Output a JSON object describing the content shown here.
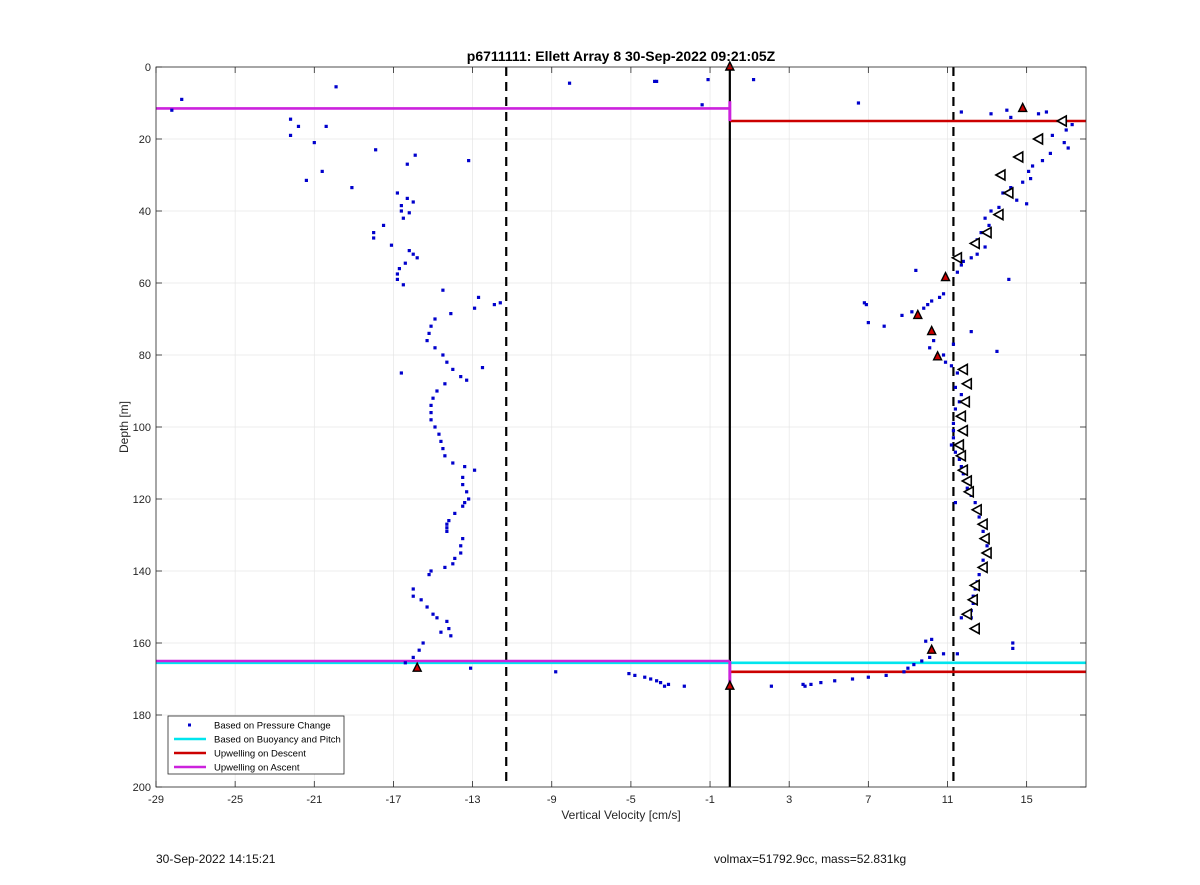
{
  "footer": {
    "timestamp": "30-Sep-2022 14:15:21",
    "volmax_mass": "volmax=51792.9cc, mass=52.831kg"
  },
  "chart_data": {
    "type": "scatter",
    "title": "p6711111: Ellett Array 8 30-Sep-2022 09:21:05Z",
    "xlabel": "Vertical Velocity [cm/s]",
    "ylabel": "Depth [m]",
    "xlim": [
      -29,
      18
    ],
    "ylim": [
      0,
      200
    ],
    "y_reversed": true,
    "grid": true,
    "xticks": [
      -29,
      -25,
      -21,
      -17,
      -13,
      -9,
      -5,
      -1,
      3,
      7,
      11,
      15
    ],
    "yticks": [
      0,
      20,
      40,
      60,
      80,
      100,
      120,
      140,
      160,
      180,
      200
    ],
    "legend_placement": "bottom-left",
    "colors": {
      "pressure": "#0000cc",
      "buoyancy": "#00e5ee",
      "descent": "#cc0000",
      "ascent": "#cc22dd",
      "triangle_edge": "#000000",
      "triangle_fill": "#ffffff",
      "marker_red": "#cc0000"
    },
    "series": [
      {
        "name": "Based on Pressure Change",
        "kind": "points",
        "points": [
          [
            -28.2,
            12
          ],
          [
            -27.7,
            9
          ],
          [
            -19.9,
            5.5
          ],
          [
            -8.1,
            4.5
          ],
          [
            -3.8,
            4
          ],
          [
            -3.7,
            4
          ],
          [
            -1.1,
            3.5
          ],
          [
            1.2,
            3.5
          ],
          [
            -1.4,
            10.5
          ],
          [
            6.5,
            10
          ],
          [
            -21.8,
            16.5
          ],
          [
            -22.2,
            14.5
          ],
          [
            -22.2,
            19
          ],
          [
            -20.4,
            16.5
          ],
          [
            -21,
            21
          ],
          [
            -21.4,
            31.5
          ],
          [
            -20.6,
            29
          ],
          [
            -19.1,
            33.5
          ],
          [
            -17.9,
            23
          ],
          [
            -15.9,
            24.5
          ],
          [
            -16.3,
            27
          ],
          [
            -13.2,
            26
          ],
          [
            -16.8,
            35
          ],
          [
            -16.3,
            36.5
          ],
          [
            -16,
            37.5
          ],
          [
            -16.6,
            40
          ],
          [
            -16.2,
            40.5
          ],
          [
            -16.5,
            42
          ],
          [
            -16.6,
            38.5
          ],
          [
            -17.5,
            44
          ],
          [
            -18,
            46
          ],
          [
            -18,
            47.5
          ],
          [
            -17.1,
            49.5
          ],
          [
            -16.2,
            51
          ],
          [
            -16,
            52
          ],
          [
            -15.8,
            53
          ],
          [
            -16.4,
            54.5
          ],
          [
            -16.7,
            56
          ],
          [
            -16.8,
            57.5
          ],
          [
            -16.8,
            59
          ],
          [
            -16.5,
            60.5
          ],
          [
            -14.5,
            62
          ],
          [
            -12.7,
            64
          ],
          [
            -12.9,
            67
          ],
          [
            -11.9,
            66
          ],
          [
            -11.6,
            65.5
          ],
          [
            -14.1,
            68.5
          ],
          [
            -14.9,
            70
          ],
          [
            -15.1,
            72
          ],
          [
            -15.2,
            74
          ],
          [
            -15.3,
            76
          ],
          [
            -14.9,
            78
          ],
          [
            -14.5,
            80
          ],
          [
            -14.3,
            82
          ],
          [
            -14,
            84
          ],
          [
            -12.5,
            83.5
          ],
          [
            -16.6,
            85
          ],
          [
            -13.6,
            86
          ],
          [
            -13.3,
            87
          ],
          [
            -14.4,
            88
          ],
          [
            -14.8,
            90
          ],
          [
            -15,
            92
          ],
          [
            -15.1,
            94
          ],
          [
            -15.1,
            96
          ],
          [
            -15.1,
            98
          ],
          [
            -14.9,
            100
          ],
          [
            -14.7,
            102
          ],
          [
            -14.6,
            104
          ],
          [
            -14.5,
            106
          ],
          [
            -14.4,
            108
          ],
          [
            -14,
            110
          ],
          [
            -13.4,
            111
          ],
          [
            -12.9,
            112
          ],
          [
            -13.5,
            114
          ],
          [
            -13.5,
            116
          ],
          [
            -13.3,
            118
          ],
          [
            -13.2,
            120
          ],
          [
            -13.4,
            121
          ],
          [
            -13.5,
            122
          ],
          [
            -13.9,
            124
          ],
          [
            -14.2,
            126
          ],
          [
            -14.3,
            127
          ],
          [
            -14.3,
            128
          ],
          [
            -14.3,
            129
          ],
          [
            -13.5,
            131
          ],
          [
            -13.6,
            133
          ],
          [
            -13.6,
            135
          ],
          [
            -13.9,
            136.5
          ],
          [
            -14,
            138
          ],
          [
            -14.4,
            139
          ],
          [
            -15.1,
            140
          ],
          [
            -15.2,
            141
          ],
          [
            -16,
            145
          ],
          [
            -16,
            147
          ],
          [
            -15.6,
            148
          ],
          [
            -15.3,
            150
          ],
          [
            -15,
            152
          ],
          [
            -14.8,
            153
          ],
          [
            -14.3,
            154
          ],
          [
            -14.2,
            156
          ],
          [
            -14.1,
            158
          ],
          [
            -14.6,
            157
          ],
          [
            -15.5,
            160
          ],
          [
            -15.7,
            162
          ],
          [
            -16,
            164
          ],
          [
            -16.4,
            165.5
          ],
          [
            -13.1,
            167
          ],
          [
            -8.8,
            168
          ],
          [
            -5.1,
            168.5
          ],
          [
            -4.8,
            169
          ],
          [
            -4.3,
            169.5
          ],
          [
            -4,
            170
          ],
          [
            -3.7,
            170.5
          ],
          [
            -3.5,
            171
          ],
          [
            -3.3,
            172
          ],
          [
            -3.1,
            171.5
          ],
          [
            -2.3,
            172
          ],
          [
            2.1,
            172
          ],
          [
            3.7,
            171.5
          ],
          [
            3.8,
            172
          ],
          [
            4.1,
            171.5
          ],
          [
            4.6,
            171
          ],
          [
            5.3,
            170.5
          ],
          [
            6.2,
            170
          ],
          [
            7,
            169.5
          ],
          [
            7.9,
            169
          ],
          [
            8.8,
            168
          ],
          [
            9,
            167
          ],
          [
            9.3,
            166
          ],
          [
            9.7,
            165
          ],
          [
            10.1,
            164
          ],
          [
            9.9,
            159.5
          ],
          [
            10.2,
            159
          ],
          [
            10.8,
            163
          ],
          [
            11.5,
            163
          ],
          [
            14.3,
            161.5
          ],
          [
            14.3,
            160
          ],
          [
            11.7,
            12.5
          ],
          [
            13.2,
            13
          ],
          [
            14,
            12
          ],
          [
            14.2,
            14
          ],
          [
            16,
            12.5
          ],
          [
            15.6,
            13
          ],
          [
            17.3,
            16
          ],
          [
            16.3,
            19
          ],
          [
            17,
            17.5
          ],
          [
            16.9,
            21
          ],
          [
            17.1,
            22.5
          ],
          [
            16.2,
            24
          ],
          [
            15.8,
            26
          ],
          [
            15.3,
            27.5
          ],
          [
            15.1,
            29
          ],
          [
            15.2,
            31
          ],
          [
            14.8,
            32
          ],
          [
            14.2,
            33.5
          ],
          [
            13.8,
            35
          ],
          [
            14.5,
            37
          ],
          [
            15,
            38
          ],
          [
            13.6,
            39
          ],
          [
            13.2,
            40
          ],
          [
            12.9,
            42
          ],
          [
            13.1,
            44
          ],
          [
            12.7,
            46
          ],
          [
            12.5,
            48
          ],
          [
            12.9,
            50
          ],
          [
            12.5,
            52
          ],
          [
            12.2,
            53
          ],
          [
            11.8,
            54
          ],
          [
            11.7,
            55
          ],
          [
            11.5,
            57
          ],
          [
            10.9,
            58
          ],
          [
            9.4,
            56.5
          ],
          [
            14.1,
            59
          ],
          [
            10.8,
            63
          ],
          [
            10.6,
            64
          ],
          [
            10.2,
            65
          ],
          [
            10,
            66
          ],
          [
            9.8,
            67
          ],
          [
            9.2,
            68
          ],
          [
            8.7,
            69
          ],
          [
            7,
            71
          ],
          [
            7.8,
            72
          ],
          [
            6.8,
            65.5
          ],
          [
            6.9,
            66
          ],
          [
            10.3,
            76
          ],
          [
            11.3,
            77
          ],
          [
            10.1,
            78
          ],
          [
            10.8,
            80
          ],
          [
            10.9,
            82
          ],
          [
            11.2,
            83
          ],
          [
            11.5,
            85
          ],
          [
            11.4,
            89
          ],
          [
            11.7,
            91
          ],
          [
            11.6,
            93
          ],
          [
            11.4,
            95
          ],
          [
            11.6,
            97
          ],
          [
            11.3,
            99
          ],
          [
            11.3,
            101
          ],
          [
            11.3,
            103
          ],
          [
            11.2,
            105
          ],
          [
            11.4,
            107
          ],
          [
            11.6,
            109
          ],
          [
            11.7,
            111
          ],
          [
            11.8,
            113
          ],
          [
            11.9,
            115
          ],
          [
            12,
            117
          ],
          [
            12.2,
            119
          ],
          [
            12.4,
            121
          ],
          [
            12.5,
            123
          ],
          [
            12.6,
            125
          ],
          [
            12.8,
            127
          ],
          [
            12.8,
            129
          ],
          [
            12.9,
            131
          ],
          [
            13,
            133
          ],
          [
            12.9,
            135
          ],
          [
            12.8,
            137
          ],
          [
            12.7,
            139
          ],
          [
            12.6,
            141
          ],
          [
            12.5,
            143
          ],
          [
            12.4,
            145
          ],
          [
            12.3,
            147
          ],
          [
            12.3,
            149
          ],
          [
            12.2,
            151
          ],
          [
            12.2,
            153
          ],
          [
            11.7,
            153
          ],
          [
            11.4,
            121
          ],
          [
            12.2,
            73.5
          ],
          [
            13.5,
            79
          ]
        ]
      },
      {
        "name": "Based on Buoyancy and Pitch",
        "kind": "hline",
        "segments": [
          {
            "y": 165.5,
            "x1": -29,
            "x2": 18
          }
        ]
      },
      {
        "name": "Upwelling on Descent",
        "kind": "hline",
        "segments": [
          {
            "y": 15,
            "x1": 0,
            "x2": 18
          },
          {
            "y": 168,
            "x1": 0,
            "x2": 18
          }
        ]
      },
      {
        "name": "Upwelling on Ascent",
        "kind": "hline",
        "segments": [
          {
            "y": 11.5,
            "x1": -29,
            "x2": 0
          },
          {
            "y": 165,
            "x1": -29,
            "x2": 0
          }
        ]
      },
      {
        "name": "",
        "kind": "triangles",
        "points": [
          [
            16.8,
            15
          ],
          [
            15.6,
            20
          ],
          [
            14.6,
            25
          ],
          [
            13.7,
            30
          ],
          [
            14.1,
            35
          ],
          [
            13.6,
            41
          ],
          [
            13,
            46
          ],
          [
            12.4,
            49
          ],
          [
            11.5,
            53
          ],
          [
            11.8,
            84
          ],
          [
            12,
            88
          ],
          [
            11.9,
            93
          ],
          [
            11.7,
            97
          ],
          [
            11.8,
            101
          ],
          [
            11.6,
            105
          ],
          [
            11.7,
            108
          ],
          [
            11.8,
            112
          ],
          [
            12,
            115
          ],
          [
            12.1,
            118
          ],
          [
            12.5,
            123
          ],
          [
            12.8,
            127
          ],
          [
            12.9,
            131
          ],
          [
            13,
            135
          ],
          [
            12.8,
            139
          ],
          [
            12.4,
            144
          ],
          [
            12.3,
            148
          ],
          [
            12,
            152
          ],
          [
            12.4,
            156
          ]
        ]
      },
      {
        "name": "",
        "kind": "red-markers",
        "points": [
          [
            0,
            0
          ],
          [
            14.8,
            11.5
          ],
          [
            10.9,
            58.5
          ],
          [
            9.5,
            69
          ],
          [
            10.2,
            73.5
          ],
          [
            10.5,
            80.5
          ],
          [
            10.2,
            162
          ],
          [
            -15.8,
            167
          ],
          [
            0,
            172
          ]
        ]
      },
      {
        "name": "",
        "kind": "dashed-vline",
        "x": [
          -11.3,
          11.3
        ]
      },
      {
        "name": "",
        "kind": "solid-vline",
        "x": [
          0
        ]
      }
    ]
  }
}
